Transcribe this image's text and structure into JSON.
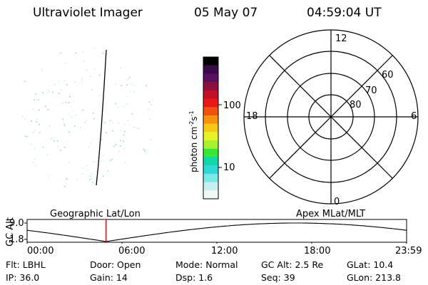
{
  "header": {
    "instrument": "Ultraviolet Imager",
    "date": "05 May 07",
    "time": "04:59:04 UT"
  },
  "colorbar": {
    "unit_label": "photon cm",
    "unit_exp_cm": "-2",
    "unit_s": "s",
    "unit_exp_s": "-1",
    "tick_100": "100",
    "tick_10": "10",
    "colors": [
      "#000000",
      "#3a0a4a",
      "#5a1060",
      "#8a1040",
      "#c0102a",
      "#e81818",
      "#f05010",
      "#f89010",
      "#f8c818",
      "#e8f028",
      "#a8f030",
      "#38e838",
      "#10d8a8",
      "#30d8d8",
      "#78e8e8",
      "#c8f0f0",
      "#f0f8f8"
    ]
  },
  "polar_plot": {
    "mlt_labels": {
      "top": "12",
      "left": "18",
      "right": "6",
      "bottom": "0"
    },
    "lat_labels": [
      "60",
      "70",
      "80"
    ]
  },
  "timeline": {
    "left_label": "Geographic Lat/Lon",
    "right_label": "Apex MLat/MLT",
    "y_axis_title": "GC Alt",
    "y_ticks": [
      "9.0",
      "1.8"
    ],
    "x_ticks": [
      "00:00",
      "06:00",
      "12:00",
      "18:00",
      "23:59"
    ],
    "current_time_fraction": 0.208,
    "marker_color": "#cc0000"
  },
  "info": {
    "flt": "Flt: LBHL",
    "door": "Door: Open",
    "mode": "Mode: Normal",
    "gc_alt": "GC Alt: 2.5 Re",
    "glat": "GLat:  10.4",
    "ip": "IP: 36.0",
    "gain": "Gain: 14",
    "dsp": "Dsp:    1.6",
    "seq": "Seq: 39",
    "glon": "GLon: 213.8"
  }
}
